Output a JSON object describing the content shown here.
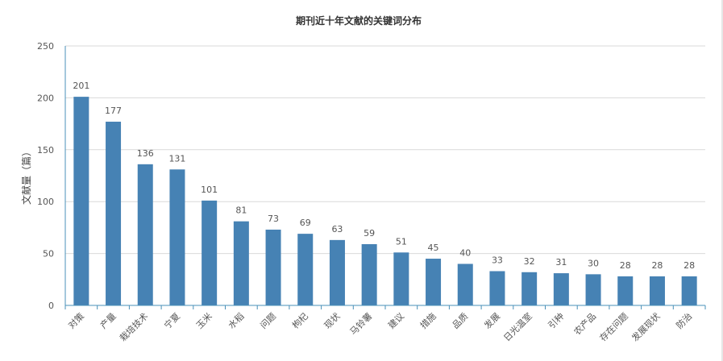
{
  "chart_data": {
    "type": "bar",
    "title": "期刊近十年文献的关键词分布",
    "ylabel": "文献量（篇）",
    "xlabel": "",
    "ylim": [
      0,
      250
    ],
    "yticks": [
      0,
      50,
      100,
      150,
      200,
      250
    ],
    "grid": true,
    "categories": [
      "对策",
      "产量",
      "栽培技术",
      "宁夏",
      "玉米",
      "水稻",
      "问题",
      "枸杞",
      "现状",
      "马铃薯",
      "建议",
      "措施",
      "品质",
      "发展",
      "日光温室",
      "引种",
      "农产品",
      "存在问题",
      "发展现状",
      "防治"
    ],
    "values": [
      201,
      177,
      136,
      131,
      101,
      81,
      73,
      69,
      63,
      59,
      51,
      45,
      40,
      33,
      32,
      31,
      30,
      28,
      28,
      28
    ],
    "colors": {
      "bar": "#4682b4",
      "grid": "#d9d9d9",
      "axis": "#4a90b8",
      "text": "#555555"
    }
  }
}
